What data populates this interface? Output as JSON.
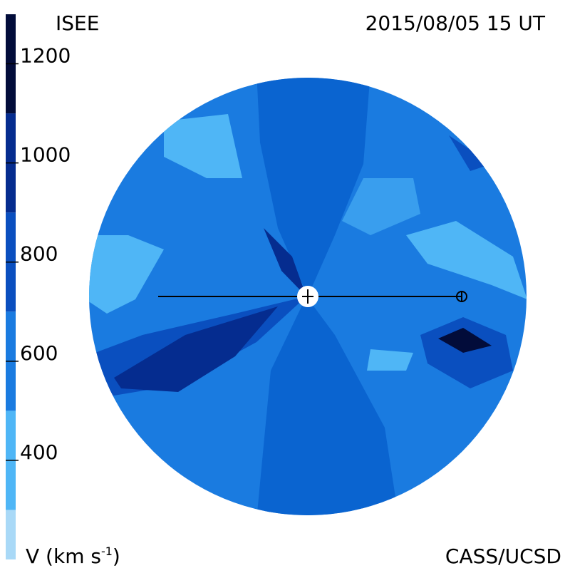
{
  "header": {
    "left": "ISEE",
    "right": "2015/08/05 15 UT"
  },
  "footer": {
    "credit": "CASS/UCSD",
    "unit_label": {
      "text": "V (km s",
      "superscript": "-1",
      "close": ")"
    }
  },
  "colorbar": {
    "lim": [
      200,
      1300
    ],
    "ticks": [
      400,
      600,
      800,
      1000,
      1200
    ],
    "levels": [
      {
        "from": 200,
        "to": 300,
        "color": "#a9d9f7"
      },
      {
        "from": 300,
        "to": 500,
        "color": "#4fb6f6"
      },
      {
        "from": 500,
        "to": 700,
        "color": "#1a7be0"
      },
      {
        "from": 700,
        "to": 900,
        "color": "#0a4fbf"
      },
      {
        "from": 900,
        "to": 1100,
        "color": "#052c8f"
      },
      {
        "from": 1100,
        "to": 1300,
        "color": "#020c3a"
      }
    ]
  }
}
